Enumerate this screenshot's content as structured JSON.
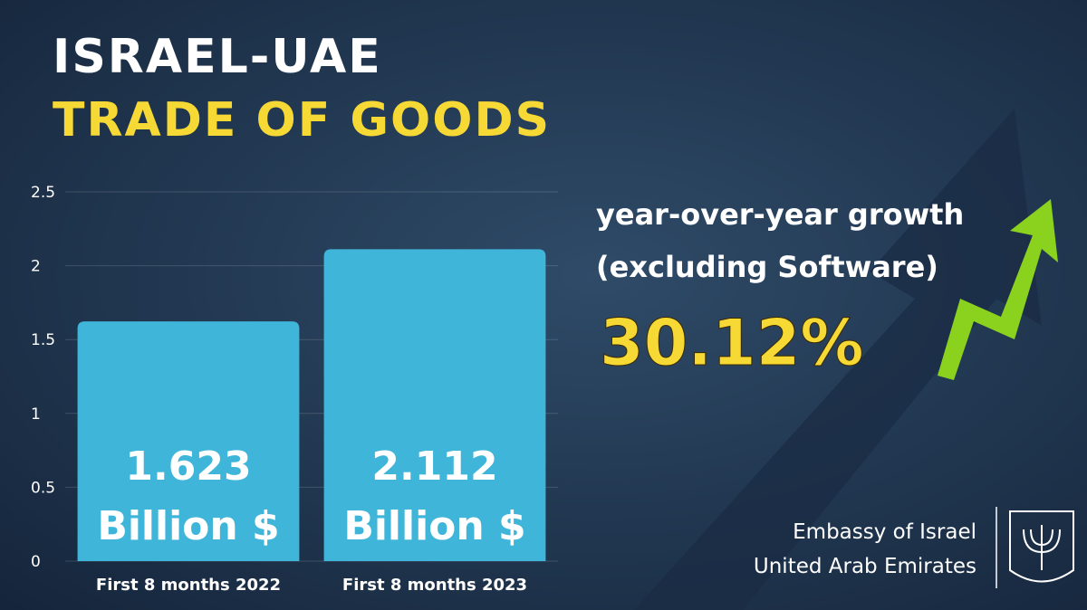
{
  "chart_data": {
    "type": "bar",
    "title": "ISRAEL-UAE",
    "subtitle": "TRADE OF GOODS",
    "categories": [
      "First 8 months 2022",
      "First 8 months 2023"
    ],
    "values": [
      1.623,
      2.112
    ],
    "value_unit": "Billion $",
    "color": "#3fb6d9",
    "ylim": [
      0,
      2.5
    ],
    "yticks": [
      0,
      0.5,
      1,
      1.5,
      2,
      2.5
    ],
    "grid": true,
    "annotations": [
      "year-over-year growth",
      "(excluding Software)",
      "30.12%"
    ],
    "footer": [
      "Embassy of Israel",
      "United Arab Emirates"
    ]
  }
}
